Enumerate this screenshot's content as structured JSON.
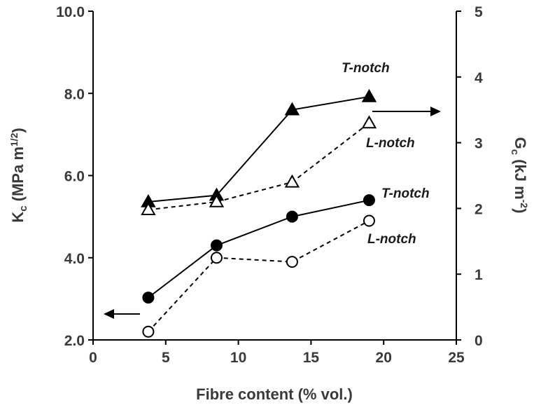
{
  "chart_data": {
    "type": "line",
    "xlabel": "Fibre content (%  vol.)",
    "ylabel_left": {
      "main": "K",
      "sub": "c",
      "rest": " (MPa m",
      "sup": "1/2",
      "close": ")"
    },
    "ylabel_right": {
      "main": "G",
      "sub": "c",
      "rest": " (kJ m",
      "sup": "-2",
      "close": ")"
    },
    "xlim": [
      0,
      25
    ],
    "ylim_left": [
      2.0,
      10.0
    ],
    "ylim_right": [
      0,
      5
    ],
    "x_ticks": [
      0,
      5,
      10,
      15,
      20,
      25
    ],
    "x_tick_labels": [
      "0",
      "5",
      "10",
      "15",
      "20",
      "25"
    ],
    "y_left_ticks": [
      2,
      4,
      6,
      8,
      10
    ],
    "y_left_tick_labels": [
      "2.0",
      "4.0",
      "6.0",
      "8.0",
      "10.0"
    ],
    "y_right_ticks": [
      0,
      1,
      2,
      3,
      4,
      5
    ],
    "y_right_tick_labels": [
      "0",
      "1",
      "2",
      "3",
      "4",
      "5"
    ],
    "grid": false,
    "series": [
      {
        "label": "T-notch",
        "axis": "left",
        "marker": "circle",
        "filled": true,
        "dashed": false,
        "x": [
          3.8,
          8.5,
          13.7,
          19.0
        ],
        "y": [
          3.03,
          4.3,
          5.0,
          5.4
        ]
      },
      {
        "label": "L-notch",
        "axis": "left",
        "marker": "circle",
        "filled": false,
        "dashed": true,
        "x": [
          3.8,
          8.5,
          13.7,
          19.0
        ],
        "y": [
          2.2,
          4.0,
          3.9,
          4.9
        ]
      },
      {
        "label": "T-notch",
        "axis": "right",
        "marker": "triangle",
        "filled": true,
        "dashed": false,
        "x": [
          3.8,
          8.5,
          13.7,
          19.0
        ],
        "y": [
          2.1,
          2.2,
          3.5,
          3.7
        ]
      },
      {
        "label": "L-notch",
        "axis": "right",
        "marker": "triangle",
        "filled": false,
        "dashed": true,
        "x": [
          3.8,
          8.5,
          13.7,
          19.0
        ],
        "y": [
          1.98,
          2.1,
          2.4,
          3.3
        ]
      }
    ],
    "annotations": [
      {
        "text": "T-notch",
        "series": 2
      },
      {
        "text": "L-notch",
        "series": 3
      },
      {
        "text": "T-notch",
        "series": 0
      },
      {
        "text": "L-notch",
        "series": 1
      },
      {
        "type": "arrow",
        "direction": "left",
        "meaning": "left axis"
      },
      {
        "type": "arrow",
        "direction": "right",
        "meaning": "right axis"
      }
    ]
  },
  "colors": {
    "axis": "#000000",
    "line": "#000000",
    "text": "#3a3a3a",
    "background": "#ffffff"
  }
}
